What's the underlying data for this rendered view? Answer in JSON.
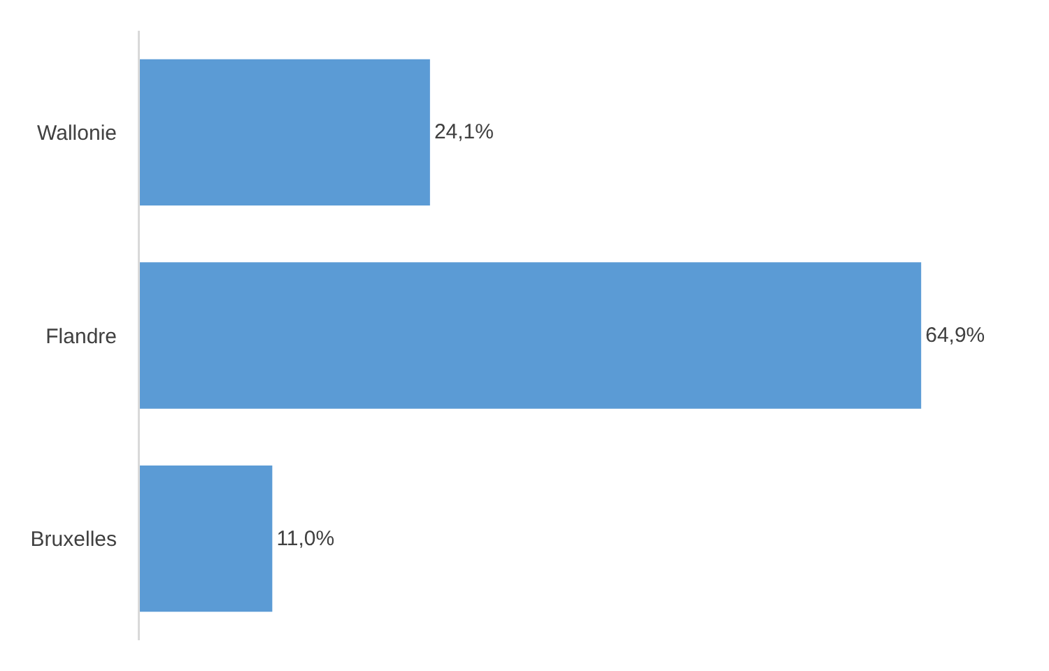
{
  "chart_data": {
    "type": "bar",
    "orientation": "horizontal",
    "categories": [
      "Wallonie",
      "Flandre",
      "Bruxelles"
    ],
    "values": [
      24.1,
      64.9,
      11.0
    ],
    "value_labels": [
      "24,1%",
      "64,9%",
      "11,0%"
    ],
    "color": "#5b9bd5",
    "tick_labels": "y"
  }
}
